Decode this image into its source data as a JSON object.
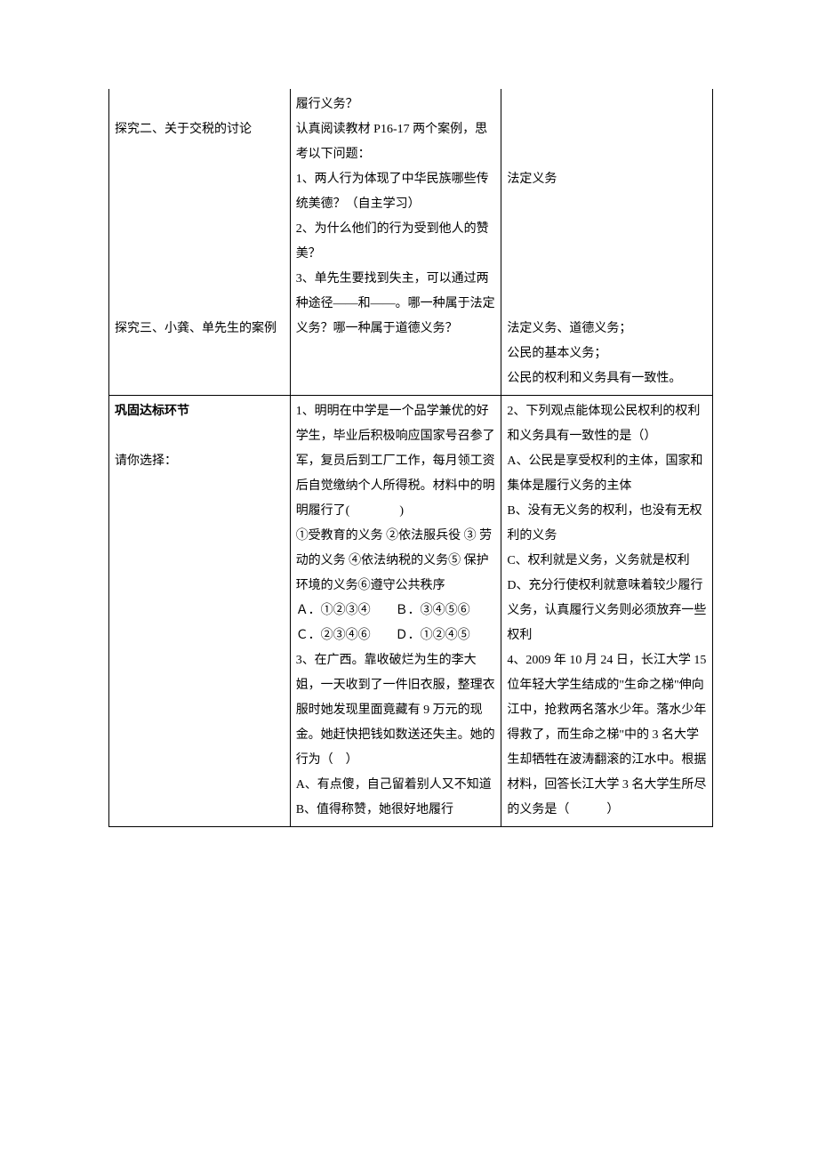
{
  "row1": {
    "col1": {
      "p2": "探究二、关于交税的讨论",
      "p3": "探究三、小龚、单先生的案例"
    },
    "col2": {
      "l1": "履行义务？",
      "l2": "认真阅读教材 P16-17 两个案例，思考以下问题：",
      "l3": "1、两人行为体现了中华民族哪些传统美德？（自主学习）",
      "l4": "2、为什么他们的行为受到他人的赞美？",
      "l5": "3、单先生要找到失主，可以通过两种途径——和——。哪一种属于法定义务？哪一种属于道德义务？"
    },
    "col3": {
      "l1": "法定义务",
      "l2": "法定义务、道德义务；",
      "l3": "公民的基本义务；",
      "l4": "公民的权利和义务具有一致性。"
    }
  },
  "row2": {
    "col1": {
      "l1": "巩固达标环节",
      "l2": "请你选择："
    },
    "col2": {
      "q1": "1、明明在中学是一个品学兼优的好学生，毕业后积极响应国家号召参了军，复员后到工厂工作，每月领工资后自觉缴纳个人所得税。材料中的明明履行了(　　　　)",
      "q1opts": "①受教育的义务 ②依法服兵役 ③ 劳动的义务 ④依法纳税的义务⑤ 保护环境的义务⑥遵守公共秩序",
      "q1a": "Ａ．①②③④　　Ｂ．③④⑤⑥",
      "q1b": "Ｃ．②③④⑥　　Ｄ．①②④⑤",
      "q3": "3、在广西。靠收破烂为生的李大姐，一天收到了一件旧衣服，整理衣服时她发现里面竟藏有 9 万元的现金。她赶快把钱如数送还失主。她的行为（　）",
      "q3a": "A、有点傻，自己留着别人又不知道",
      "q3b": "B、值得称赞，她很好地履行"
    },
    "col3": {
      "q2": "2、下列观点能体现公民权利的权利和义务具有一致性的是（）",
      "q2a": "A、公民是享受权利的主体，国家和集体是履行义务的主体",
      "q2b": "B、没有无义务的权利，也没有无权利的义务",
      "q2c": "C、权利就是义务，义务就是权利",
      "q2d": "D、充分行使权利就意味着较少履行义务，认真履行义务则必须放弃一些权利",
      "q4": "4、2009 年 10 月 24 日，长江大学 15 位年轻大学生结成的\"生命之梯\"伸向江中，抢救两名落水少年。落水少年得救了，而生命之梯\"中的 3 名大学生却牺牲在波涛翻滚的江水中。根据材料，回答长江大学 3 名大学生所尽的义务是（　　　）"
    }
  }
}
